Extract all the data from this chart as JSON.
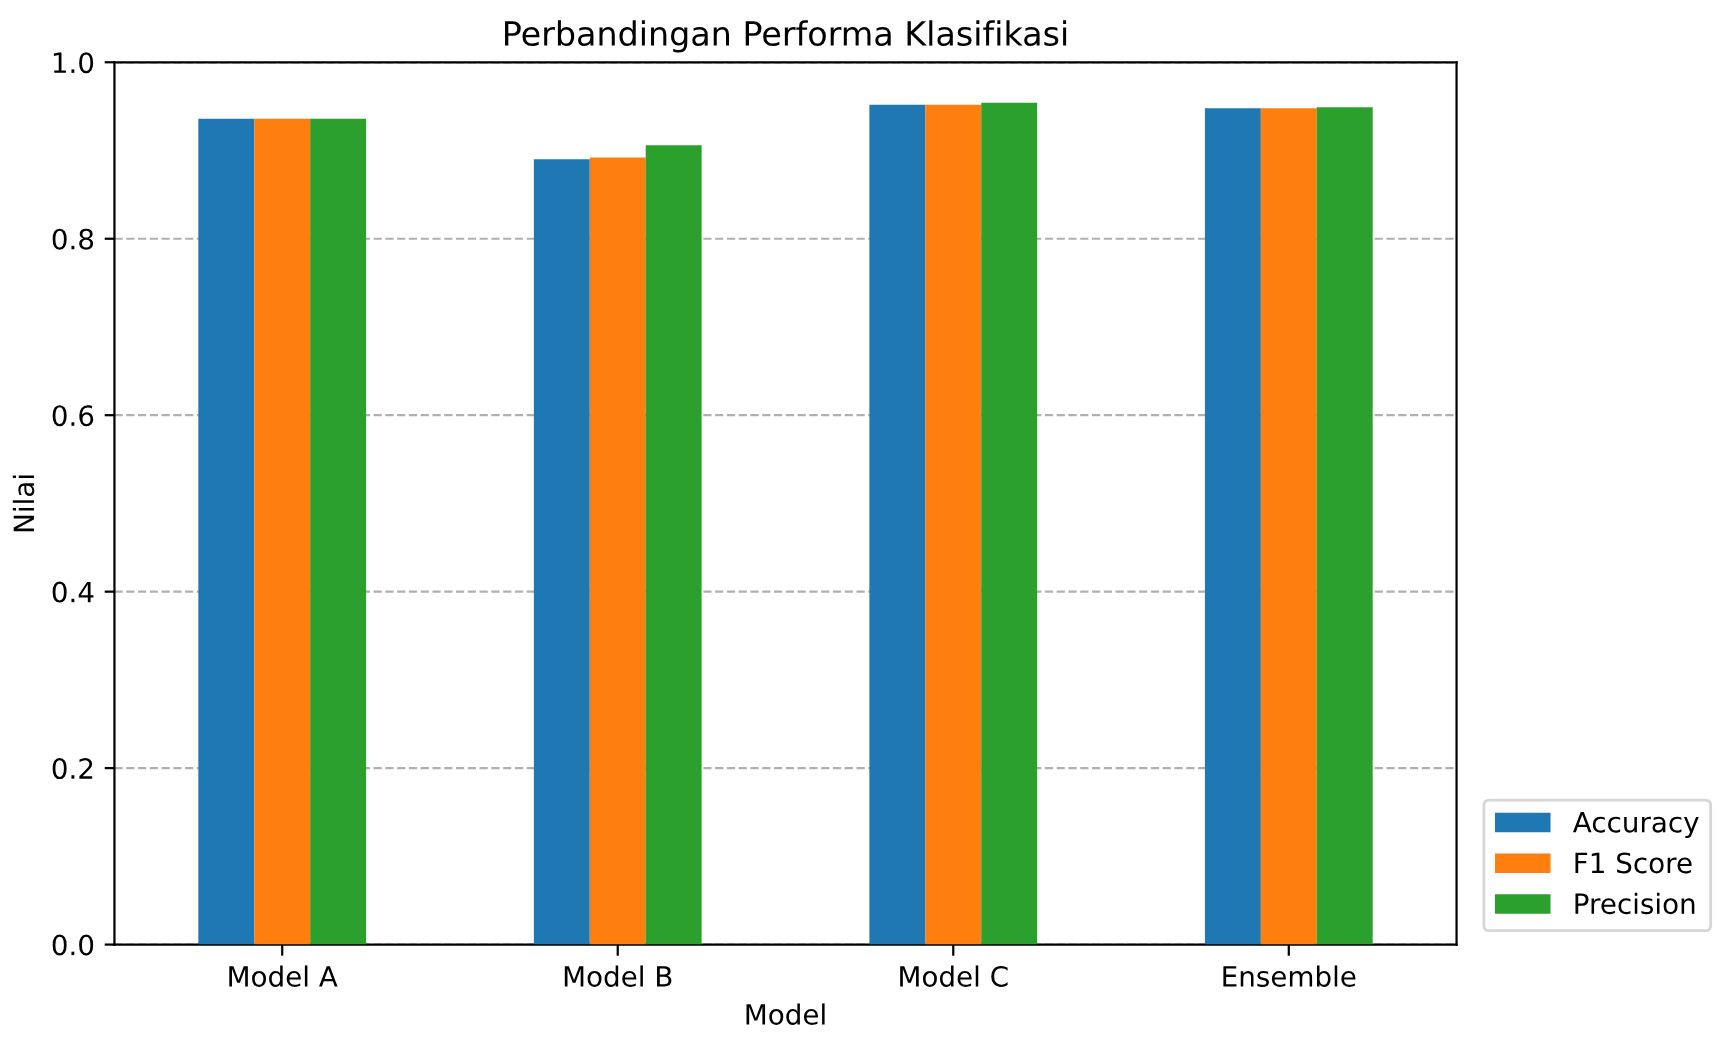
{
  "chart_data": {
    "type": "bar",
    "title": "Perbandingan Performa Klasifikasi",
    "xlabel": "Model",
    "ylabel": "Nilai",
    "categories": [
      "Model A",
      "Model B",
      "Model C",
      "Ensemble"
    ],
    "series": [
      {
        "name": "Accuracy",
        "color": "#1f77b4",
        "values": [
          0.936,
          0.89,
          0.952,
          0.948
        ]
      },
      {
        "name": "F1 Score",
        "color": "#ff7f0e",
        "values": [
          0.936,
          0.892,
          0.952,
          0.948
        ]
      },
      {
        "name": "Precision",
        "color": "#2ca02c",
        "values": [
          0.936,
          0.906,
          0.954,
          0.949
        ]
      }
    ],
    "ylim": [
      0,
      1.0
    ],
    "yticks": [
      {
        "value": 0,
        "label": "0.0"
      },
      0.2,
      0.4,
      0.6,
      0.8,
      {
        "value": 1,
        "label": "1.0"
      }
    ],
    "grid": "y",
    "line_style": "dashed",
    "legend": "bottom right"
  }
}
